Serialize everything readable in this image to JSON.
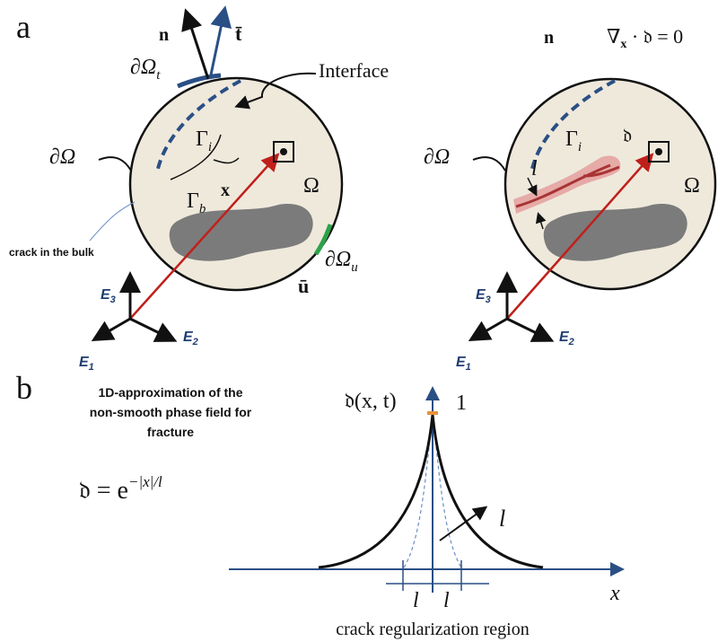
{
  "panel_a": {
    "label": "a",
    "left": {
      "normal": "n",
      "traction": "t̄",
      "boundary_t": {
        "base": "∂Ω",
        "sub": "t"
      },
      "interface": "Interface",
      "gamma_i": {
        "base": "Γ",
        "sub": "i"
      },
      "boundary": "∂Ω",
      "position": "x",
      "domain": "Ω",
      "gamma_b": {
        "base": "Γ",
        "sub": "b"
      },
      "crack_note": "crack in the bulk",
      "boundary_u": {
        "base": "∂Ω",
        "sub": "u"
      },
      "displacement": "ū",
      "e3": {
        "base": "E",
        "sub": "3"
      },
      "e2": {
        "base": "E",
        "sub": "2"
      },
      "e1": {
        "base": "E",
        "sub": "1"
      }
    },
    "right": {
      "normal": "n",
      "constraint": {
        "base": "∇",
        "sub": "x",
        "rest": " · 𝔡 = 0"
      },
      "boundary": "∂Ω",
      "gamma_i": {
        "base": "Γ",
        "sub": "i"
      },
      "phase_field": "𝔡",
      "length": "l",
      "domain": "Ω",
      "e3": {
        "base": "E",
        "sub": "3"
      },
      "e2": {
        "base": "E",
        "sub": "2"
      },
      "e1": {
        "base": "E",
        "sub": "1"
      }
    }
  },
  "panel_b": {
    "label": "b",
    "title_lines": [
      "1D-approximation of the",
      "non-smooth phase field for",
      "fracture"
    ],
    "formula": {
      "base": "𝔡 = e",
      "sup": "−|x|/l"
    },
    "y_label": "𝔡(x, t)",
    "peak_label": "1",
    "length_label": "l",
    "x_label": "x",
    "width_labels": [
      "l",
      "l"
    ],
    "region_label": "crack regularization region"
  }
}
